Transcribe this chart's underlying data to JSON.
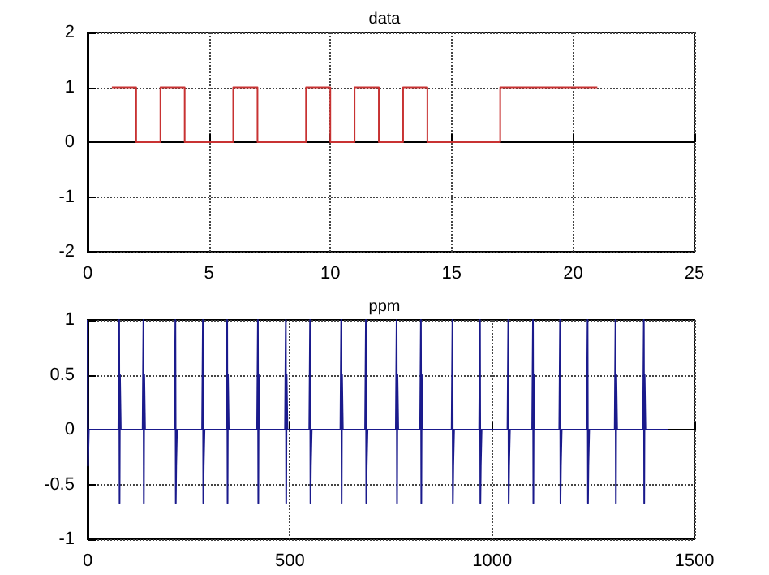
{
  "chart_data": [
    {
      "type": "step",
      "title": "data",
      "x": [
        1,
        2,
        3,
        4,
        5,
        6,
        7,
        8,
        9,
        10,
        11,
        12,
        13,
        14,
        15,
        16,
        17,
        18,
        19,
        20,
        21
      ],
      "series": [
        {
          "color": "#c83232",
          "values": [
            1,
            0,
            1,
            0,
            0,
            1,
            0,
            0,
            1,
            0,
            1,
            0,
            1,
            0,
            0,
            0,
            1,
            1,
            1,
            1,
            1
          ]
        }
      ],
      "xlim": [
        0,
        25
      ],
      "xticks": [
        0,
        5,
        10,
        15,
        20,
        25
      ],
      "ylim": [
        -2,
        2
      ],
      "yticks": [
        -2,
        -1,
        0,
        1,
        2
      ],
      "grid": true
    },
    {
      "type": "line",
      "title": "ppm",
      "x": [
        0,
        1,
        3,
        76,
        78,
        79,
        80,
        82,
        136,
        138,
        139,
        140,
        142,
        215,
        217,
        218,
        219,
        221,
        283,
        285,
        286,
        287,
        289,
        343,
        345,
        346,
        347,
        349,
        419,
        421,
        422,
        423,
        425,
        488,
        490,
        491,
        492,
        494,
        548,
        550,
        551,
        552,
        554,
        625,
        627,
        628,
        629,
        631,
        686,
        688,
        689,
        690,
        692,
        762,
        764,
        765,
        766,
        768,
        822,
        824,
        825,
        826,
        828,
        900,
        902,
        903,
        904,
        906,
        968,
        970,
        971,
        972,
        974,
        1038,
        1040,
        1041,
        1042,
        1044,
        1099,
        1101,
        1102,
        1103,
        1105,
        1166,
        1168,
        1169,
        1170,
        1172,
        1234,
        1236,
        1237,
        1238,
        1240,
        1303,
        1305,
        1306,
        1307,
        1309,
        1373,
        1375,
        1376,
        1377,
        1379,
        1434
      ],
      "series": [
        {
          "color": "#1a1a8c",
          "values": [
            1,
            -0.33,
            0,
            0,
            1,
            -0.67,
            0.5,
            0,
            0,
            1,
            -0.67,
            0.5,
            0,
            0,
            1,
            -0.67,
            -0.33,
            0,
            0,
            1,
            -0.67,
            -0.33,
            0,
            0,
            1,
            -0.67,
            0.5,
            0,
            0,
            1,
            -0.67,
            0.5,
            0,
            0,
            1,
            -0.67,
            0.5,
            0,
            0,
            1,
            -0.67,
            -0.33,
            0,
            0,
            1,
            -0.67,
            0.5,
            0,
            0,
            1,
            -0.67,
            -0.33,
            0,
            0,
            1,
            -0.67,
            0.5,
            0,
            0,
            1,
            -0.67,
            0.5,
            0,
            0,
            1,
            -0.67,
            -0.33,
            0,
            0,
            1,
            -0.67,
            -0.33,
            0,
            0,
            1,
            -0.67,
            -0.33,
            0,
            0,
            1,
            -0.67,
            0.5,
            0,
            0,
            1,
            -0.67,
            -0.33,
            0,
            0,
            1,
            -0.67,
            -0.33,
            0,
            0,
            1,
            -0.67,
            0.5,
            0,
            0,
            1,
            -0.67,
            0.5,
            0,
            0
          ]
        }
      ],
      "xlim": [
        0,
        1500
      ],
      "xticks": [
        0,
        500,
        1000,
        1500
      ],
      "ylim": [
        -1,
        1
      ],
      "yticks": [
        -1,
        -0.5,
        0,
        0.5,
        1
      ],
      "grid": true
    }
  ]
}
